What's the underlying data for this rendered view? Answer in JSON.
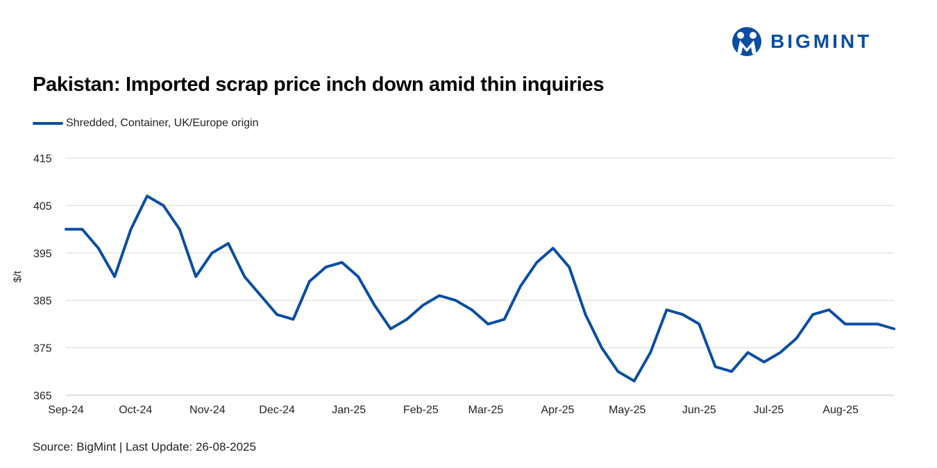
{
  "brand": {
    "name": "BIGMINT",
    "color": "#0a4ea3"
  },
  "chart_data": {
    "type": "line",
    "title": "Pakistan: Imported scrap price inch down amid thin inquiries",
    "ylabel": "$/t",
    "xlabel": "",
    "ylim": [
      365,
      415
    ],
    "yticks": [
      365,
      375,
      385,
      395,
      405,
      415
    ],
    "xticks": [
      {
        "date": "2024-09-01",
        "label": "Sep-24"
      },
      {
        "date": "2024-10-01",
        "label": "Oct-24"
      },
      {
        "date": "2024-11-01",
        "label": "Nov-24"
      },
      {
        "date": "2024-12-01",
        "label": "Dec-24"
      },
      {
        "date": "2025-01-01",
        "label": "Jan-25"
      },
      {
        "date": "2025-02-01",
        "label": "Feb-25"
      },
      {
        "date": "2025-03-01",
        "label": "Mar-25"
      },
      {
        "date": "2025-04-01",
        "label": "Apr-25"
      },
      {
        "date": "2025-05-01",
        "label": "May-25"
      },
      {
        "date": "2025-06-01",
        "label": "Jun-25"
      },
      {
        "date": "2025-07-01",
        "label": "Jul-25"
      },
      {
        "date": "2025-08-01",
        "label": "Aug-25"
      }
    ],
    "grid": "horizontal",
    "legend": "top-left",
    "series": [
      {
        "name": "Shredded, Container, UK/Europe origin",
        "color": "#0a4ea3",
        "x": [
          "2024-09-01",
          "2024-09-08",
          "2024-09-15",
          "2024-09-22",
          "2024-09-29",
          "2024-10-06",
          "2024-10-13",
          "2024-10-20",
          "2024-10-27",
          "2024-11-03",
          "2024-11-10",
          "2024-11-17",
          "2024-11-24",
          "2024-12-01",
          "2024-12-08",
          "2024-12-15",
          "2024-12-22",
          "2024-12-29",
          "2025-01-05",
          "2025-01-12",
          "2025-01-19",
          "2025-01-26",
          "2025-02-02",
          "2025-02-09",
          "2025-02-16",
          "2025-02-23",
          "2025-03-02",
          "2025-03-09",
          "2025-03-16",
          "2025-03-23",
          "2025-03-30",
          "2025-04-06",
          "2025-04-13",
          "2025-04-20",
          "2025-04-27",
          "2025-05-04",
          "2025-05-11",
          "2025-05-18",
          "2025-05-25",
          "2025-06-01",
          "2025-06-08",
          "2025-06-15",
          "2025-06-22",
          "2025-06-29",
          "2025-07-06",
          "2025-07-13",
          "2025-07-20",
          "2025-07-27",
          "2025-08-03",
          "2025-08-10",
          "2025-08-17",
          "2025-08-24"
        ],
        "values": [
          400,
          400,
          396,
          390,
          400,
          407,
          405,
          400,
          390,
          395,
          397,
          390,
          386,
          382,
          381,
          389,
          392,
          393,
          390,
          384,
          379,
          381,
          384,
          386,
          385,
          383,
          380,
          381,
          388,
          393,
          396,
          392,
          382,
          375,
          370,
          368,
          374,
          383,
          382,
          380,
          371,
          370,
          374,
          372,
          374,
          377,
          382,
          383,
          380,
          380,
          380,
          379
        ]
      }
    ]
  },
  "footer": {
    "source": "Source: BigMint | Last Update: 26-08-2025"
  }
}
